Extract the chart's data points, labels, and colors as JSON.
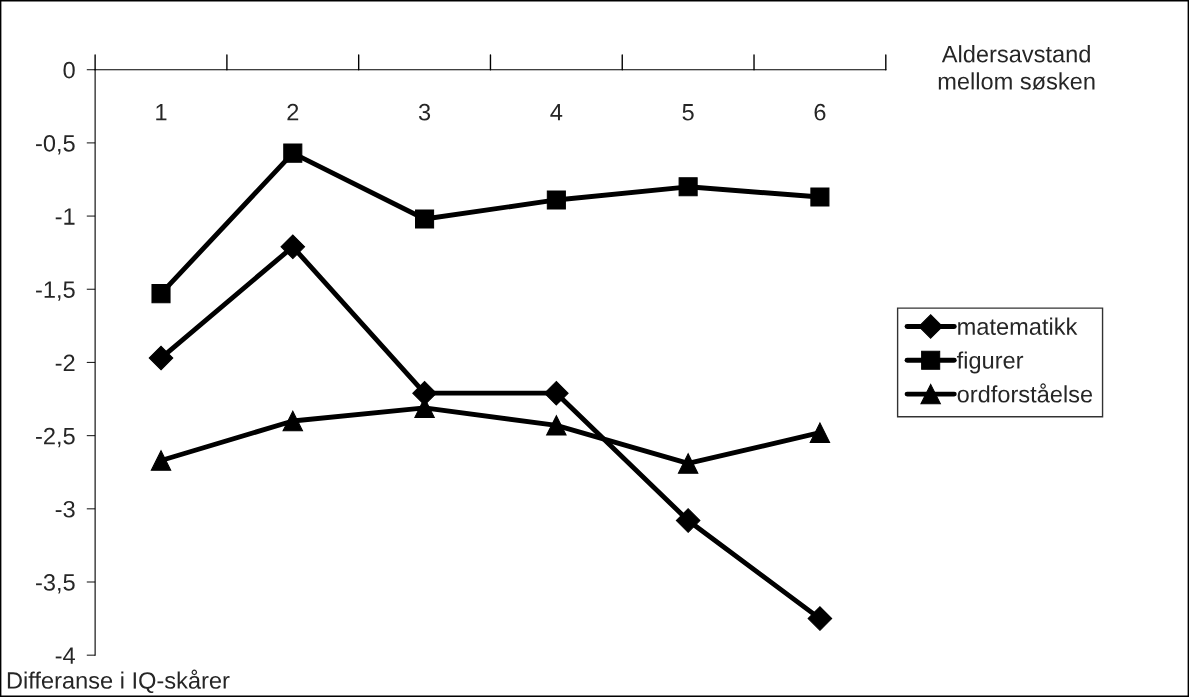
{
  "chart_data": {
    "type": "line",
    "xlabel": "Aldersavstand\nmellom søsken",
    "ylabel": "Differanse i IQ-skårer",
    "categories": [
      "1",
      "2",
      "3",
      "4",
      "5",
      "6"
    ],
    "series": [
      {
        "name": "matematikk",
        "color": "#000000",
        "marker": "diamond",
        "values": [
          -1.97,
          -1.21,
          -2.21,
          -2.21,
          -3.08,
          -3.75
        ]
      },
      {
        "name": "figurer",
        "color": "#000000",
        "marker": "square",
        "values": [
          -1.53,
          -0.57,
          -1.02,
          -0.89,
          -0.8,
          -0.87
        ]
      },
      {
        "name": "ordforståelse",
        "color": "#000000",
        "marker": "triangle",
        "values": [
          -2.67,
          -2.4,
          -2.31,
          -2.43,
          -2.69,
          -2.48
        ]
      }
    ],
    "ylim": [
      -4,
      0
    ],
    "yticks": [
      {
        "value": 0,
        "label": "0"
      },
      {
        "value": -0.5,
        "label": "-0,5"
      },
      {
        "value": -1,
        "label": "-1"
      },
      {
        "value": -1.5,
        "label": "-1,5"
      },
      {
        "value": -2,
        "label": "-2"
      },
      {
        "value": -2.5,
        "label": "-2,5"
      },
      {
        "value": -3,
        "label": "-3"
      },
      {
        "value": -3.5,
        "label": "-3,5"
      },
      {
        "value": -4,
        "label": "-4"
      }
    ],
    "grid": false,
    "legend": "right",
    "line_style": "solid"
  }
}
